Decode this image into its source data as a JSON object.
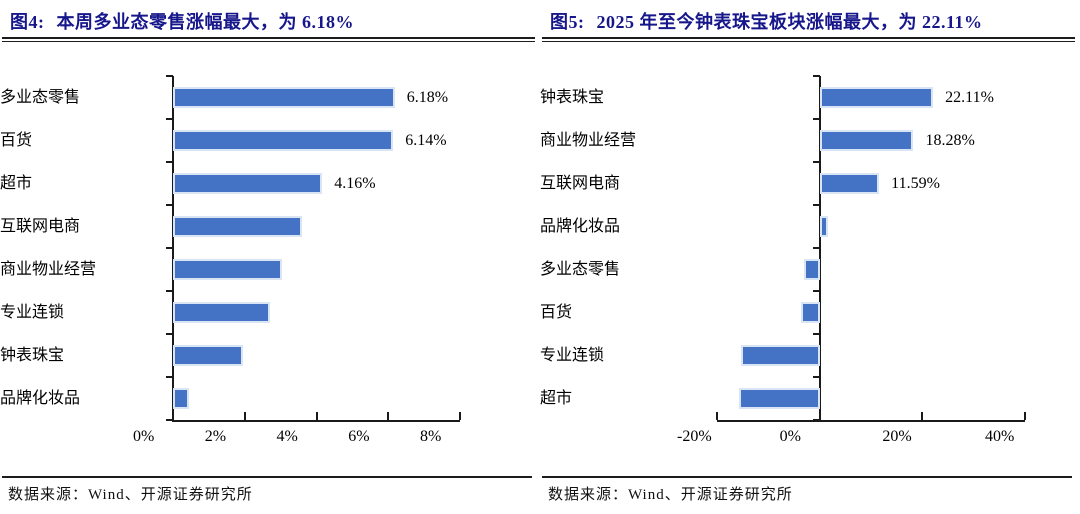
{
  "figures": [
    {
      "title_prefix": "图4:",
      "title_text": "本周多业态零售涨幅最大，为 6.18%",
      "source": "数据来源：Wind、开源证券研究所",
      "chart_data": {
        "type": "bar",
        "orientation": "horizontal",
        "title": "本周多业态零售涨幅最大，为 6.18%",
        "bar_color": "#4472C4",
        "bar_border_color": "#D9E4F4",
        "categories": [
          "多业态零售",
          "百货",
          "超市",
          "互联网电商",
          "商业物业经营",
          "专业连锁",
          "钟表珠宝",
          "品牌化妆品"
        ],
        "values": [
          6.18,
          6.14,
          4.16,
          3.6,
          3.05,
          2.7,
          1.94,
          0.45
        ],
        "data_labels": [
          "6.18%",
          "6.14%",
          "4.16%",
          "",
          "",
          "",
          "",
          ""
        ],
        "xlim": [
          0,
          8
        ],
        "xtick_values": [
          0,
          2,
          4,
          6,
          8
        ],
        "xtick_labels": [
          "0%",
          "2%",
          "4%",
          "6%",
          "8%"
        ],
        "grid": false,
        "legend": false
      }
    },
    {
      "title_prefix": "图5:",
      "title_text": "2025 年至今钟表珠宝板块涨幅最大，为 22.11%",
      "source": "数据来源：Wind、开源证券研究所",
      "chart_data": {
        "type": "bar",
        "orientation": "horizontal",
        "title": "2025 年至今钟表珠宝板块涨幅最大，为 22.11%",
        "bar_color": "#4472C4",
        "bar_border_color": "#D9E4F4",
        "categories": [
          "钟表珠宝",
          "商业物业经营",
          "互联网电商",
          "品牌化妆品",
          "多业态零售",
          "百货",
          "专业连锁",
          "超市"
        ],
        "values": [
          22.11,
          18.28,
          11.59,
          1.6,
          -3.0,
          -3.7,
          -15.4,
          -15.7
        ],
        "data_labels": [
          "22.11%",
          "18.28%",
          "11.59%",
          "",
          "",
          "",
          "",
          ""
        ],
        "xlim": [
          -20,
          40
        ],
        "xtick_values": [
          -20,
          0,
          20,
          40
        ],
        "xtick_labels": [
          "-20%",
          "0%",
          "20%",
          "40%"
        ],
        "grid": false,
        "legend": false
      }
    }
  ]
}
